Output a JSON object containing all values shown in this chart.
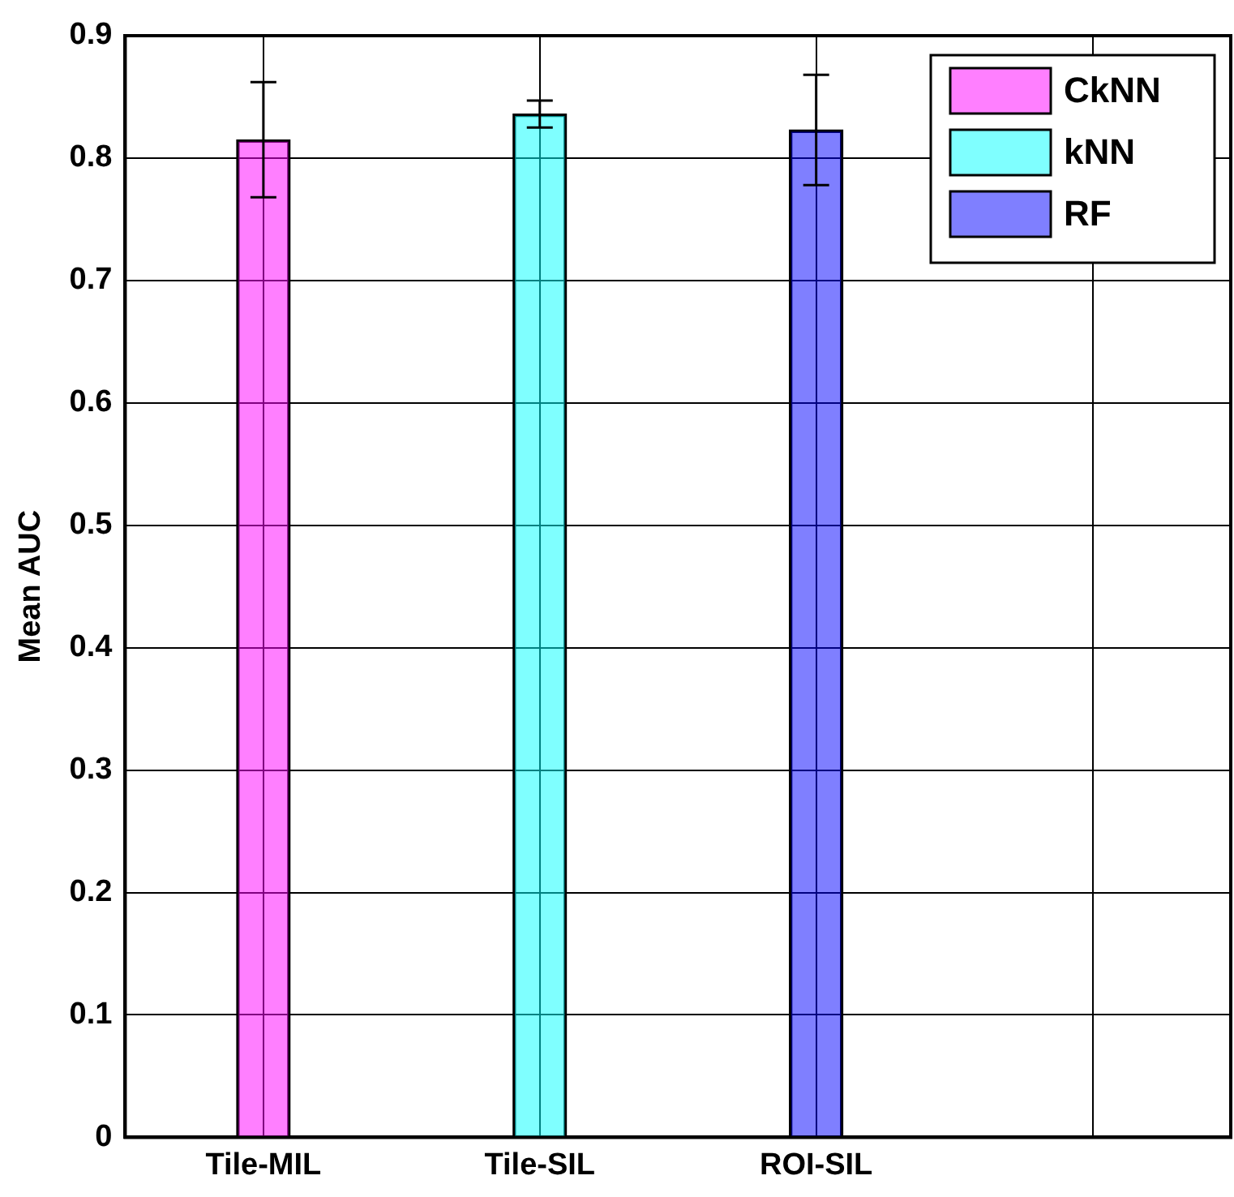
{
  "chart_data": {
    "type": "bar",
    "ylabel": "Mean AUC",
    "categories": [
      "Tile-MIL",
      "Tile-SIL",
      "ROI-SIL",
      null
    ],
    "series": [
      {
        "name": "CkNN",
        "color": "#ff00ff",
        "values": [
          0.815,
          null,
          null,
          null
        ],
        "errors": [
          0.047,
          null,
          null,
          null
        ]
      },
      {
        "name": "kNN",
        "color": "#00ffff",
        "values": [
          null,
          0.836,
          null,
          null
        ],
        "errors": [
          null,
          0.011,
          null,
          null
        ]
      },
      {
        "name": "RF",
        "color": "#0000ff",
        "values": [
          null,
          null,
          0.823,
          null
        ],
        "errors": [
          null,
          null,
          0.045,
          null
        ]
      }
    ],
    "ylim": [
      0,
      0.9
    ],
    "yticks": [
      0,
      0.1,
      0.2,
      0.3,
      0.4,
      0.5,
      0.6,
      0.7,
      0.8,
      0.9
    ],
    "grid": true,
    "legend": "top right"
  }
}
